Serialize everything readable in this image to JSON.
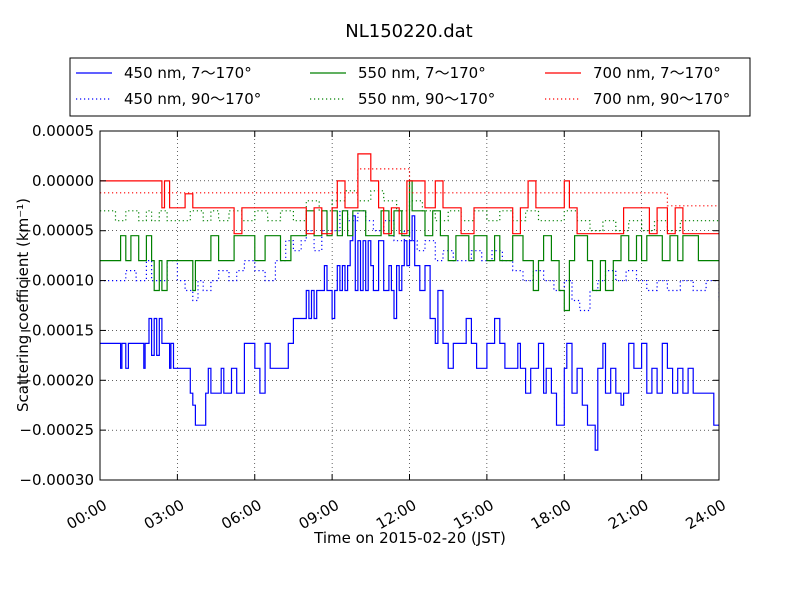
{
  "chart_data": {
    "type": "line",
    "title": "NL150220.dat",
    "xlabel": "Time on 2015-02-20 (JST)",
    "ylabel": "Scattering coefficient (km⁻¹)",
    "xlim": [
      0,
      24
    ],
    "ylim": [
      -0.0003,
      5e-05
    ],
    "x_ticks": [
      0,
      3,
      6,
      9,
      12,
      15,
      18,
      21,
      24
    ],
    "x_tick_labels": [
      "00:00",
      "03:00",
      "06:00",
      "09:00",
      "12:00",
      "15:00",
      "18:00",
      "21:00",
      "24:00"
    ],
    "y_ticks": [
      5e-05,
      0.0,
      -5e-05,
      -0.0001,
      -0.00015,
      -0.0002,
      -0.00025,
      -0.0003
    ],
    "y_tick_labels": [
      "0.00005",
      "0.00000",
      "−0.00005",
      "−0.00010",
      "−0.00015",
      "−0.00020",
      "−0.00025",
      "−0.00030"
    ],
    "grid": true,
    "legend_position": "top",
    "series": [
      {
        "name": "450 nm, 7～170°",
        "color": "#0000ff",
        "style": "solid",
        "x": [
          0.0,
          0.6,
          0.8,
          0.85,
          1.0,
          1.1,
          1.5,
          1.7,
          1.75,
          1.9,
          2.0,
          2.1,
          2.2,
          2.3,
          2.4,
          2.6,
          2.7,
          2.75,
          2.85,
          3.0,
          3.3,
          3.5,
          3.6,
          3.7,
          4.0,
          4.1,
          4.2,
          4.3,
          4.7,
          4.8,
          5.0,
          5.1,
          5.3,
          5.5,
          5.6,
          5.8,
          6.0,
          6.2,
          6.4,
          6.6,
          7.0,
          7.2,
          7.3,
          7.5,
          7.8,
          8.0,
          8.1,
          8.2,
          8.3,
          8.4,
          8.5,
          8.6,
          8.7,
          8.8,
          9.0,
          9.1,
          9.2,
          9.3,
          9.4,
          9.5,
          9.6,
          9.7,
          9.8,
          9.9,
          10.0,
          10.1,
          10.2,
          10.3,
          10.4,
          10.5,
          10.6,
          10.8,
          11.0,
          11.2,
          11.3,
          11.4,
          11.5,
          11.6,
          11.7,
          11.8,
          11.9,
          12.0,
          12.1,
          12.2,
          12.4,
          12.6,
          12.8,
          13.0,
          13.1,
          13.3,
          13.5,
          13.7,
          14.0,
          14.2,
          14.4,
          14.6,
          15.0,
          15.3,
          15.5,
          15.7,
          16.0,
          16.2,
          16.3,
          16.5,
          16.7,
          17.0,
          17.2,
          17.3,
          17.5,
          17.7,
          18.0,
          18.1,
          18.3,
          18.5,
          18.7,
          18.9,
          19.0,
          19.2,
          19.3,
          19.5,
          19.6,
          19.8,
          20.0,
          20.2,
          20.3,
          20.5,
          20.7,
          21.0,
          21.2,
          21.4,
          21.6,
          21.8,
          22.0,
          22.2,
          22.4,
          22.6,
          22.8,
          23.0,
          23.3,
          23.6,
          23.8,
          24.0
        ],
        "y": [
          -0.000163,
          -0.000163,
          -0.000188,
          -0.000163,
          -0.000188,
          -0.000163,
          -0.000163,
          -0.000188,
          -0.000163,
          -0.000138,
          -0.000175,
          -0.000138,
          -0.000175,
          -0.000138,
          -0.000163,
          -0.000163,
          -0.000188,
          -0.000163,
          -0.000188,
          -0.000188,
          -0.000188,
          -0.000213,
          -0.000225,
          -0.000245,
          -0.000245,
          -0.000213,
          -0.000188,
          -0.000213,
          -0.000188,
          -0.000213,
          -0.000213,
          -0.000188,
          -0.000213,
          -0.000213,
          -0.000163,
          -0.000163,
          -0.000188,
          -0.000213,
          -0.000163,
          -0.000188,
          -0.000188,
          -0.000188,
          -0.000163,
          -0.000138,
          -0.000138,
          -0.00011,
          -0.000138,
          -0.00011,
          -0.000138,
          -0.00011,
          -0.00011,
          -0.00011,
          -8.5e-05,
          -0.00011,
          -0.000138,
          -0.00011,
          -8.5e-05,
          -0.00011,
          -8.5e-05,
          -0.00011,
          -8.5e-05,
          -6e-05,
          -3.5e-05,
          -0.00011,
          -6e-05,
          -0.00011,
          -6e-05,
          -0.00011,
          -6e-05,
          -8.5e-05,
          -0.00011,
          -6e-05,
          -0.00011,
          -8.5e-05,
          -0.00011,
          -0.000138,
          -8.5e-05,
          -0.00011,
          -8.5e-05,
          -6e-05,
          -8.5e-05,
          -6e-05,
          -3.5e-05,
          -8.5e-05,
          -0.00011,
          -8.5e-05,
          -0.000138,
          -0.000163,
          -0.00011,
          -0.000163,
          -0.000188,
          -0.000163,
          -0.000163,
          -0.000138,
          -0.000163,
          -0.000188,
          -0.000163,
          -0.000138,
          -0.000163,
          -0.000188,
          -0.000188,
          -0.000163,
          -0.000188,
          -0.000213,
          -0.000188,
          -0.000163,
          -0.000213,
          -0.000188,
          -0.000213,
          -0.000245,
          -0.000188,
          -0.000163,
          -0.000213,
          -0.000188,
          -0.000225,
          -0.000245,
          -0.000245,
          -0.00027,
          -0.000188,
          -0.000163,
          -0.000213,
          -0.000188,
          -0.000213,
          -0.000225,
          -0.000213,
          -0.000163,
          -0.000188,
          -0.000163,
          -0.000213,
          -0.000188,
          -0.000213,
          -0.000163,
          -0.000188,
          -0.000213,
          -0.000188,
          -0.000213,
          -0.000188,
          -0.000213,
          -0.000213,
          -0.000213,
          -0.000245,
          -0.000245
        ]
      },
      {
        "name": "450 nm, 90～170°",
        "color": "#0000ff",
        "style": "dotted",
        "x": [
          0.0,
          0.7,
          1.0,
          1.4,
          1.8,
          2.0,
          2.2,
          2.6,
          3.0,
          3.3,
          3.6,
          3.8,
          4.0,
          4.3,
          4.6,
          5.0,
          5.3,
          5.6,
          6.0,
          6.4,
          6.8,
          7.2,
          7.5,
          7.8,
          8.0,
          8.3,
          8.6,
          9.0,
          9.3,
          9.6,
          10.0,
          10.3,
          10.6,
          11.0,
          11.4,
          11.8,
          12.0,
          12.3,
          12.6,
          13.0,
          13.3,
          13.7,
          14.0,
          14.4,
          14.8,
          15.2,
          15.6,
          16.0,
          16.4,
          16.8,
          17.2,
          17.6,
          18.0,
          18.3,
          18.6,
          19.0,
          19.3,
          19.6,
          20.0,
          20.4,
          20.8,
          21.2,
          21.6,
          22.0,
          22.5,
          23.0,
          23.5,
          24.0
        ],
        "y": [
          -0.0001,
          -0.0001,
          -9e-05,
          -0.0001,
          -8e-05,
          -0.0001,
          -0.0001,
          -8e-05,
          -0.0001,
          -0.00011,
          -0.00012,
          -0.0001,
          -0.00011,
          -0.0001,
          -9e-05,
          -0.0001,
          -9e-05,
          -8e-05,
          -9e-05,
          -0.0001,
          -8e-05,
          -6e-05,
          -7e-05,
          -6e-05,
          -5e-05,
          -7e-05,
          -5e-05,
          -5e-05,
          -3e-05,
          -4e-05,
          -3e-05,
          -4e-05,
          -5e-05,
          -4e-05,
          -6e-05,
          -5e-05,
          -6e-05,
          -7e-05,
          -6e-05,
          -8e-05,
          -7e-05,
          -8e-05,
          -8e-05,
          -7e-05,
          -8e-05,
          -7e-05,
          -8e-05,
          -9e-05,
          -0.0001,
          -9e-05,
          -0.0001,
          -0.00011,
          -0.0001,
          -0.00012,
          -0.00013,
          -0.00011,
          -0.0001,
          -9e-05,
          -0.0001,
          -9e-05,
          -0.0001,
          -0.00011,
          -0.0001,
          -0.00011,
          -0.0001,
          -0.00011,
          -0.0001,
          -0.00012
        ]
      },
      {
        "name": "550 nm, 7～170°",
        "color": "#008000",
        "style": "solid",
        "x": [
          0.0,
          0.6,
          0.8,
          1.0,
          1.2,
          1.5,
          1.8,
          2.0,
          2.1,
          2.3,
          2.4,
          2.6,
          3.0,
          3.4,
          3.6,
          3.7,
          4.0,
          4.3,
          4.6,
          5.0,
          5.2,
          5.6,
          6.0,
          6.4,
          6.8,
          7.0,
          7.4,
          7.8,
          8.0,
          8.3,
          8.6,
          8.8,
          9.0,
          9.2,
          9.4,
          9.6,
          9.8,
          10.0,
          10.3,
          10.6,
          10.9,
          11.2,
          11.4,
          11.7,
          12.0,
          12.1,
          12.3,
          12.6,
          12.9,
          13.0,
          13.2,
          13.5,
          13.8,
          14.0,
          14.3,
          14.5,
          14.8,
          15.0,
          15.3,
          15.5,
          15.8,
          16.0,
          16.4,
          16.8,
          17.0,
          17.2,
          17.5,
          17.8,
          18.0,
          18.2,
          18.4,
          18.6,
          18.9,
          19.1,
          19.4,
          19.6,
          19.9,
          20.2,
          20.5,
          20.8,
          21.0,
          21.2,
          21.5,
          21.8,
          22.1,
          22.4,
          22.6,
          22.9,
          23.2,
          23.5,
          24.0
        ],
        "y": [
          -8e-05,
          -8e-05,
          -5.5e-05,
          -8e-05,
          -5.5e-05,
          -8e-05,
          -5.5e-05,
          -8e-05,
          -0.00011,
          -8e-05,
          -0.00011,
          -8e-05,
          -8e-05,
          -8e-05,
          -0.00011,
          -8e-05,
          -8e-05,
          -5.5e-05,
          -8e-05,
          -8e-05,
          -5.5e-05,
          -5.5e-05,
          -8e-05,
          -5.5e-05,
          -5.5e-05,
          -8e-05,
          -5.5e-05,
          -5.5e-05,
          -3e-05,
          -5.5e-05,
          -3e-05,
          -5.5e-05,
          -3e-05,
          -5.5e-05,
          -3e-05,
          -5.5e-05,
          -3e-05,
          -3e-05,
          -5.5e-05,
          -5.5e-05,
          -3e-05,
          -5.5e-05,
          -3e-05,
          -5.5e-05,
          0.0,
          -3e-05,
          -3e-05,
          -5.5e-05,
          -3e-05,
          -3e-05,
          -5.5e-05,
          -8e-05,
          -5.5e-05,
          -5.5e-05,
          -8e-05,
          -5.5e-05,
          -5.5e-05,
          -8e-05,
          -5.5e-05,
          -8e-05,
          -8e-05,
          -5.5e-05,
          -8e-05,
          -0.00011,
          -8e-05,
          -5.5e-05,
          -8e-05,
          -0.00011,
          -0.00013,
          -8e-05,
          -5.5e-05,
          -5.5e-05,
          -8e-05,
          -0.00011,
          -8e-05,
          -0.00011,
          -8e-05,
          -5.5e-05,
          -8e-05,
          -5.5e-05,
          -8e-05,
          -5.5e-05,
          -5.5e-05,
          -8e-05,
          -5.5e-05,
          -8e-05,
          -5.5e-05,
          -5.5e-05,
          -8e-05,
          -8e-05,
          -8e-05
        ]
      },
      {
        "name": "550 nm, 90～170°",
        "color": "#008000",
        "style": "dotted",
        "x": [
          0.0,
          0.6,
          1.0,
          1.5,
          1.8,
          2.0,
          2.3,
          2.6,
          3.0,
          3.5,
          4.0,
          4.3,
          4.6,
          5.0,
          5.5,
          6.0,
          6.5,
          7.0,
          7.5,
          8.0,
          8.5,
          9.0,
          9.5,
          10.0,
          10.5,
          11.0,
          11.5,
          12.0,
          12.5,
          13.0,
          13.5,
          14.0,
          14.5,
          15.0,
          15.5,
          16.0,
          16.5,
          17.0,
          17.5,
          18.0,
          18.5,
          19.0,
          19.5,
          20.0,
          20.5,
          21.0,
          21.5,
          22.0,
          22.5,
          23.0,
          23.5,
          24.0
        ],
        "y": [
          -3e-05,
          -4e-05,
          -3e-05,
          -4e-05,
          -3e-05,
          -4e-05,
          -3e-05,
          -4e-05,
          -4e-05,
          -3e-05,
          -4e-05,
          -3e-05,
          -4e-05,
          -3e-05,
          -4e-05,
          -3e-05,
          -4e-05,
          -3e-05,
          -4e-05,
          -2e-05,
          -3e-05,
          -2e-05,
          -1e-05,
          -2e-05,
          -1e-05,
          -2e-05,
          -3e-05,
          -2e-05,
          -3e-05,
          -4e-05,
          -3e-05,
          -4e-05,
          -3e-05,
          -4e-05,
          -3e-05,
          -4e-05,
          -3e-05,
          -4e-05,
          -4e-05,
          -3e-05,
          -4e-05,
          -5e-05,
          -4e-05,
          -5e-05,
          -4e-05,
          -5e-05,
          -4e-05,
          -5e-05,
          -4e-05,
          -4e-05,
          -4e-05,
          -4e-05
        ]
      },
      {
        "name": "700 nm, 7～170°",
        "color": "#ff0000",
        "style": "solid",
        "x": [
          0.0,
          2.0,
          2.4,
          2.5,
          2.7,
          3.0,
          3.3,
          3.6,
          4.0,
          5.0,
          5.2,
          5.5,
          6.0,
          6.5,
          7.0,
          7.5,
          8.0,
          8.3,
          8.6,
          9.0,
          9.2,
          9.5,
          9.8,
          10.0,
          10.2,
          10.5,
          10.8,
          11.0,
          11.3,
          11.6,
          11.9,
          12.0,
          12.3,
          12.6,
          13.0,
          13.3,
          13.6,
          14.0,
          14.5,
          15.0,
          15.5,
          16.0,
          16.3,
          16.6,
          16.9,
          17.2,
          17.5,
          17.8,
          18.0,
          18.2,
          18.5,
          18.8,
          19.0,
          19.5,
          20.0,
          20.3,
          20.6,
          21.0,
          21.3,
          21.6,
          22.0,
          22.3,
          22.6,
          23.0,
          23.5,
          24.0
        ],
        "y": [
          0.0,
          0.0,
          -2.7e-05,
          0.0,
          -2.7e-05,
          -2.7e-05,
          -1.3e-05,
          -2.7e-05,
          -2.7e-05,
          -2.7e-05,
          -5.3e-05,
          -2.7e-05,
          -2.7e-05,
          -2.7e-05,
          -2.7e-05,
          -2.7e-05,
          -5.3e-05,
          -2.7e-05,
          -5.3e-05,
          -2.7e-05,
          0.0,
          -2.7e-05,
          -2.7e-05,
          2.7e-05,
          2.7e-05,
          0.0,
          -2.7e-05,
          -5.3e-05,
          -2.7e-05,
          -5.3e-05,
          0.0,
          0.0,
          0.0,
          -2.7e-05,
          0.0,
          -2.7e-05,
          -2.7e-05,
          -5.3e-05,
          -2.7e-05,
          -2.7e-05,
          -2.7e-05,
          -5.3e-05,
          -2.7e-05,
          0.0,
          -2.7e-05,
          -2.7e-05,
          -2.7e-05,
          -2.7e-05,
          0.0,
          -2.7e-05,
          -5.3e-05,
          -5.3e-05,
          -5.3e-05,
          -5.3e-05,
          -5.3e-05,
          -2.7e-05,
          -2.7e-05,
          -2.7e-05,
          -5.3e-05,
          -2.7e-05,
          -5.3e-05,
          -2.7e-05,
          -5.3e-05,
          -5.3e-05,
          -5.3e-05,
          -5.3e-05
        ]
      },
      {
        "name": "700 nm, 90～170°",
        "color": "#ff0000",
        "style": "dotted",
        "x": [
          0.0,
          3.0,
          6.0,
          8.0,
          9.5,
          10.0,
          12.0,
          14.0,
          16.0,
          18.0,
          20.0,
          22.0,
          24.0
        ],
        "y": [
          -1.2e-05,
          -1.2e-05,
          -1.2e-05,
          -1.2e-05,
          -1.2e-05,
          1.2e-05,
          -1.2e-05,
          -1.2e-05,
          -1.2e-05,
          -1.2e-05,
          -1.2e-05,
          -2.5e-05,
          -2.5e-05
        ]
      }
    ]
  }
}
